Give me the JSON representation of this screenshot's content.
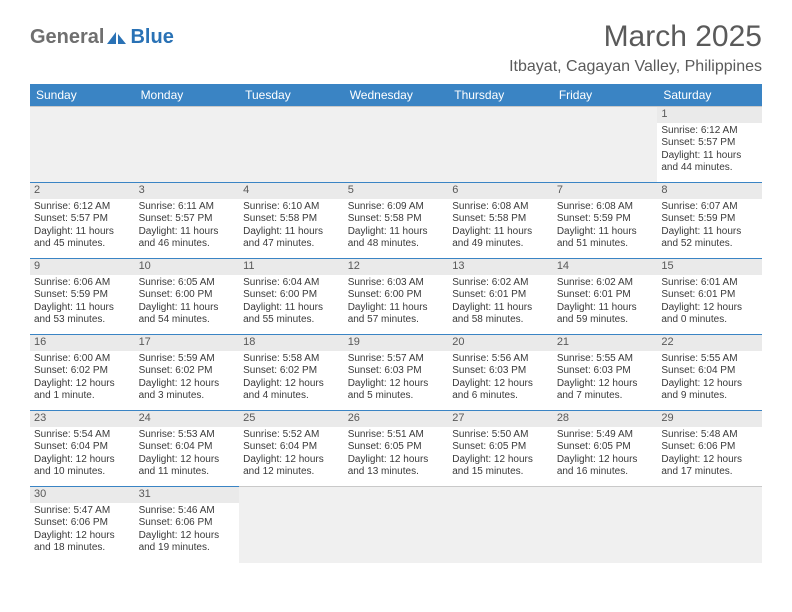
{
  "logo": {
    "gray": "General",
    "blue": "Blue"
  },
  "title": "March 2025",
  "location": "Itbayat, Cagayan Valley, Philippines",
  "colors": {
    "header_bg": "#3a84c4",
    "header_text": "#ffffff",
    "border": "#3a84c4",
    "daynum_bg": "#eaeaea",
    "empty_bg": "#f0f0f0",
    "text": "#3a3a3a",
    "logo_gray": "#6f6f6f",
    "logo_blue": "#2a72b5"
  },
  "weekdays": [
    "Sunday",
    "Monday",
    "Tuesday",
    "Wednesday",
    "Thursday",
    "Friday",
    "Saturday"
  ],
  "days": {
    "1": {
      "sunrise": "6:12 AM",
      "sunset": "5:57 PM",
      "daylight": "11 hours and 44 minutes."
    },
    "2": {
      "sunrise": "6:12 AM",
      "sunset": "5:57 PM",
      "daylight": "11 hours and 45 minutes."
    },
    "3": {
      "sunrise": "6:11 AM",
      "sunset": "5:57 PM",
      "daylight": "11 hours and 46 minutes."
    },
    "4": {
      "sunrise": "6:10 AM",
      "sunset": "5:58 PM",
      "daylight": "11 hours and 47 minutes."
    },
    "5": {
      "sunrise": "6:09 AM",
      "sunset": "5:58 PM",
      "daylight": "11 hours and 48 minutes."
    },
    "6": {
      "sunrise": "6:08 AM",
      "sunset": "5:58 PM",
      "daylight": "11 hours and 49 minutes."
    },
    "7": {
      "sunrise": "6:08 AM",
      "sunset": "5:59 PM",
      "daylight": "11 hours and 51 minutes."
    },
    "8": {
      "sunrise": "6:07 AM",
      "sunset": "5:59 PM",
      "daylight": "11 hours and 52 minutes."
    },
    "9": {
      "sunrise": "6:06 AM",
      "sunset": "5:59 PM",
      "daylight": "11 hours and 53 minutes."
    },
    "10": {
      "sunrise": "6:05 AM",
      "sunset": "6:00 PM",
      "daylight": "11 hours and 54 minutes."
    },
    "11": {
      "sunrise": "6:04 AM",
      "sunset": "6:00 PM",
      "daylight": "11 hours and 55 minutes."
    },
    "12": {
      "sunrise": "6:03 AM",
      "sunset": "6:00 PM",
      "daylight": "11 hours and 57 minutes."
    },
    "13": {
      "sunrise": "6:02 AM",
      "sunset": "6:01 PM",
      "daylight": "11 hours and 58 minutes."
    },
    "14": {
      "sunrise": "6:02 AM",
      "sunset": "6:01 PM",
      "daylight": "11 hours and 59 minutes."
    },
    "15": {
      "sunrise": "6:01 AM",
      "sunset": "6:01 PM",
      "daylight": "12 hours and 0 minutes."
    },
    "16": {
      "sunrise": "6:00 AM",
      "sunset": "6:02 PM",
      "daylight": "12 hours and 1 minute."
    },
    "17": {
      "sunrise": "5:59 AM",
      "sunset": "6:02 PM",
      "daylight": "12 hours and 3 minutes."
    },
    "18": {
      "sunrise": "5:58 AM",
      "sunset": "6:02 PM",
      "daylight": "12 hours and 4 minutes."
    },
    "19": {
      "sunrise": "5:57 AM",
      "sunset": "6:03 PM",
      "daylight": "12 hours and 5 minutes."
    },
    "20": {
      "sunrise": "5:56 AM",
      "sunset": "6:03 PM",
      "daylight": "12 hours and 6 minutes."
    },
    "21": {
      "sunrise": "5:55 AM",
      "sunset": "6:03 PM",
      "daylight": "12 hours and 7 minutes."
    },
    "22": {
      "sunrise": "5:55 AM",
      "sunset": "6:04 PM",
      "daylight": "12 hours and 9 minutes."
    },
    "23": {
      "sunrise": "5:54 AM",
      "sunset": "6:04 PM",
      "daylight": "12 hours and 10 minutes."
    },
    "24": {
      "sunrise": "5:53 AM",
      "sunset": "6:04 PM",
      "daylight": "12 hours and 11 minutes."
    },
    "25": {
      "sunrise": "5:52 AM",
      "sunset": "6:04 PM",
      "daylight": "12 hours and 12 minutes."
    },
    "26": {
      "sunrise": "5:51 AM",
      "sunset": "6:05 PM",
      "daylight": "12 hours and 13 minutes."
    },
    "27": {
      "sunrise": "5:50 AM",
      "sunset": "6:05 PM",
      "daylight": "12 hours and 15 minutes."
    },
    "28": {
      "sunrise": "5:49 AM",
      "sunset": "6:05 PM",
      "daylight": "12 hours and 16 minutes."
    },
    "29": {
      "sunrise": "5:48 AM",
      "sunset": "6:06 PM",
      "daylight": "12 hours and 17 minutes."
    },
    "30": {
      "sunrise": "5:47 AM",
      "sunset": "6:06 PM",
      "daylight": "12 hours and 18 minutes."
    },
    "31": {
      "sunrise": "5:46 AM",
      "sunset": "6:06 PM",
      "daylight": "12 hours and 19 minutes."
    }
  },
  "grid": [
    [
      null,
      null,
      null,
      null,
      null,
      null,
      "1"
    ],
    [
      "2",
      "3",
      "4",
      "5",
      "6",
      "7",
      "8"
    ],
    [
      "9",
      "10",
      "11",
      "12",
      "13",
      "14",
      "15"
    ],
    [
      "16",
      "17",
      "18",
      "19",
      "20",
      "21",
      "22"
    ],
    [
      "23",
      "24",
      "25",
      "26",
      "27",
      "28",
      "29"
    ],
    [
      "30",
      "31",
      null,
      null,
      null,
      null,
      null
    ]
  ],
  "labels": {
    "sunrise": "Sunrise:",
    "sunset": "Sunset:",
    "daylight": "Daylight:"
  }
}
